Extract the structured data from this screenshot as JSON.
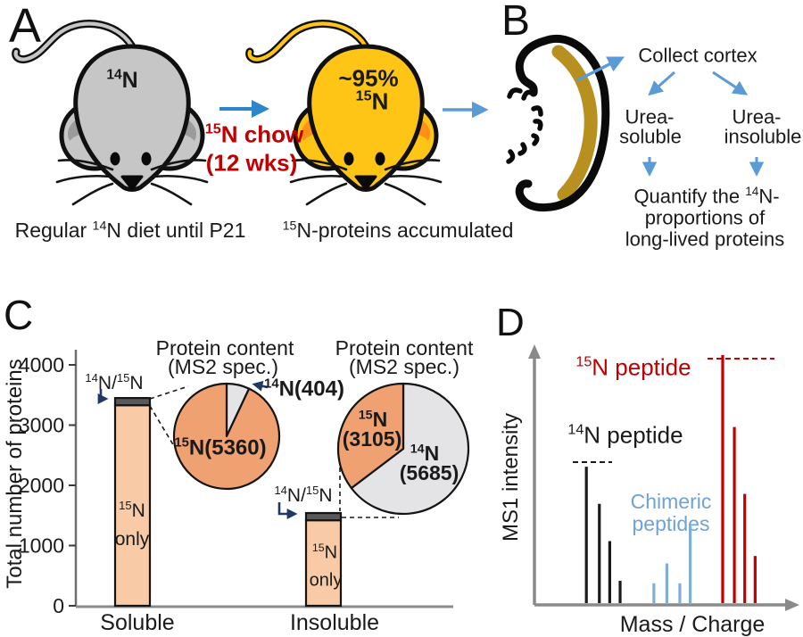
{
  "figure": {
    "description": "Stable isotope (15N) metabolic labeling workflow and proteomic quantification figure"
  },
  "colors": {
    "red_accent": "#C00000",
    "flow_arrow_blue": "#5B9BD5",
    "panelA_arrow_blue": "#2E86C8",
    "annotation_arrow_navy": "#1F3864",
    "bar_fill_peach": "#F8CBA6",
    "bar_top_segment_gray": "#595959",
    "pie_15n_orange": "#F0A172",
    "pie_14n_gray": "#E4E4E6",
    "chimeric_blue": "#7FAFD9",
    "mouse_gray": "#C6C6C6",
    "mouse_inner_ear_gray": "#9B9B9B",
    "mouse_yellow": "#FFC516",
    "mouse_inner_ear_orange": "#FF9015",
    "cortex_gold": "#B8901F",
    "axis_gray": "#8A8A8A"
  },
  "panels": {
    "A": {
      "panel_letter": "A",
      "mouse_left_label": "^{14}N",
      "mouse_right_label_line1": "~95%",
      "mouse_right_label_line2": "^{15}N",
      "transition_label_line1": "^{15}N chow",
      "transition_label_line2": "(12 wks)",
      "caption_left": "Regular ^{14}N diet until P21",
      "caption_right": "^{15}N-proteins accumulated"
    },
    "B": {
      "panel_letter": "B",
      "collect_cortex": "Collect cortex",
      "branch_left_line1": "Urea-",
      "branch_left_line2": "soluble",
      "branch_right_line1": "Urea-",
      "branch_right_line2": "insoluble",
      "quantify_line1": "Quantify the ^{14}N-",
      "quantify_line2": "proportions of",
      "quantify_line3": "long-lived proteins"
    },
    "C": {
      "panel_letter": "C",
      "y_axis_label": "Total number of proteins",
      "dual_label": "^{14}N/^{15}N",
      "bar_label_line1": "^{15}N",
      "bar_label_line2": "only",
      "pie_title_line1": "Protein content",
      "pie_title_line2": "(MS2 spec.)",
      "pie1_inner_label": "^{15}N(5360)",
      "pie1_callout_label": "^{14}N(404)",
      "pie2_orange_line1": "^{15}N",
      "pie2_orange_line2": "(3105)",
      "pie2_gray_line1": "^{14}N",
      "pie2_gray_line2": "(5685)",
      "x_label_soluble": "Soluble",
      "x_label_insoluble": "Insoluble"
    },
    "D": {
      "panel_letter": "D",
      "y_axis_label": "MS1 intensity",
      "x_axis_label": "Mass / Charge",
      "label_15n": "^{15}N peptide",
      "label_14n": "^{14}N peptide",
      "label_chimeric_line1": "Chimeric",
      "label_chimeric_line2": "peptides"
    }
  },
  "chart_data": [
    {
      "id": "protein_counts",
      "type": "bar",
      "stacked": true,
      "categories": [
        "Soluble",
        "Insoluble"
      ],
      "series": [
        {
          "name": "15N only",
          "values": [
            3330,
            1420
          ],
          "color": "#F8CBA6"
        },
        {
          "name": "14N/15N",
          "values": [
            120,
            120
          ],
          "color": "#595959"
        }
      ],
      "title": "",
      "xlabel": "",
      "ylabel": "Total number of proteins",
      "ylim": [
        0,
        4000
      ],
      "yticks": [
        0,
        1000,
        2000,
        3000,
        4000
      ],
      "grid": false,
      "note": "segment values estimated from bar heights; totals ~3450 (soluble) and ~1540 (insoluble); dark top segment = 14N/15N proteins, peach = 15N only"
    },
    {
      "id": "pie_soluble",
      "type": "pie",
      "title": "Protein content (MS2 spec.)",
      "slices": [
        {
          "label": "14N",
          "value": 404,
          "color": "#E4E4E6"
        },
        {
          "label": "15N",
          "value": 5360,
          "color": "#F0A172"
        }
      ],
      "start_angle": "top",
      "direction": "clockwise"
    },
    {
      "id": "pie_insoluble",
      "type": "pie",
      "title": "Protein content (MS2 spec.)",
      "slices": [
        {
          "label": "14N",
          "value": 5685,
          "color": "#E4E4E6"
        },
        {
          "label": "15N",
          "value": 3105,
          "color": "#F0A172"
        }
      ],
      "start_angle": "top",
      "direction": "clockwise"
    },
    {
      "id": "ms1_schematic",
      "type": "line",
      "title": "",
      "xlabel": "Mass / Charge",
      "ylabel": "MS1 intensity",
      "note": "schematic mass spectrum; x positions fractional along axis, intensities relative (max = 100)",
      "series": [
        {
          "name": "14N peptide",
          "color": "#1A1A1A",
          "peaks": [
            {
              "x": 0.2,
              "i": 55
            },
            {
              "x": 0.25,
              "i": 40
            },
            {
              "x": 0.29,
              "i": 25
            },
            {
              "x": 0.33,
              "i": 9
            }
          ]
        },
        {
          "name": "Chimeric peptides",
          "color": "#7FAFD9",
          "peaks": [
            {
              "x": 0.46,
              "i": 8
            },
            {
              "x": 0.51,
              "i": 16
            },
            {
              "x": 0.56,
              "i": 8
            },
            {
              "x": 0.6,
              "i": 31
            }
          ]
        },
        {
          "name": "15N peptide",
          "color": "#C00000",
          "peaks": [
            {
              "x": 0.725,
              "i": 100
            },
            {
              "x": 0.77,
              "i": 71
            },
            {
              "x": 0.81,
              "i": 44
            },
            {
              "x": 0.85,
              "i": 19
            }
          ]
        }
      ]
    }
  ]
}
